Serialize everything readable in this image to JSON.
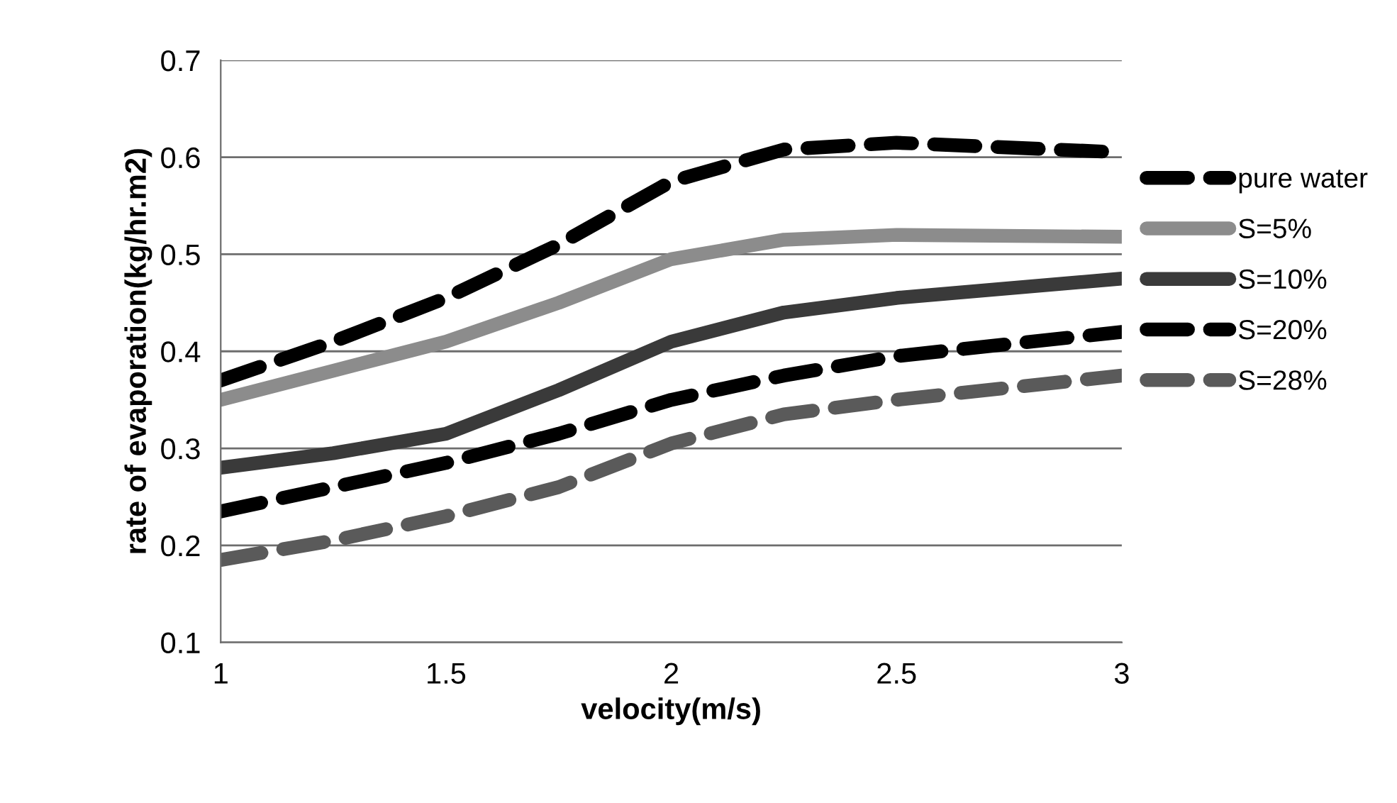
{
  "chart_data": {
    "type": "line",
    "xlabel": "velocity(m/s)",
    "ylabel": "rate of evaporation(kg/hr.m2)",
    "x": [
      1,
      1.25,
      1.5,
      1.75,
      2,
      2.25,
      2.5,
      3
    ],
    "series": [
      {
        "name": "pure water",
        "color": "#000000",
        "line_style": "dashed",
        "values": [
          0.37,
          0.41,
          0.455,
          0.51,
          0.575,
          0.608,
          0.615,
          0.605
        ]
      },
      {
        "name": "S=5%",
        "color": "#8c8c8c",
        "line_style": "solid",
        "values": [
          0.35,
          0.38,
          0.41,
          0.45,
          0.495,
          0.515,
          0.52,
          0.518
        ]
      },
      {
        "name": "S=10%",
        "color": "#3a3a3a",
        "line_style": "solid",
        "values": [
          0.28,
          0.295,
          0.315,
          0.36,
          0.41,
          0.44,
          0.455,
          0.475
        ]
      },
      {
        "name": "S=20%",
        "color": "#000000",
        "line_style": "dashed",
        "values": [
          0.235,
          0.26,
          0.285,
          0.315,
          0.35,
          0.375,
          0.395,
          0.42
        ]
      },
      {
        "name": "S=28%",
        "color": "#5a5a5a",
        "line_style": "dashed",
        "values": [
          0.185,
          0.205,
          0.23,
          0.26,
          0.305,
          0.335,
          0.35,
          0.375
        ]
      }
    ],
    "xlim": [
      1,
      3
    ],
    "xticks": [
      1,
      1.5,
      2,
      2.5,
      3
    ],
    "ylim": [
      0.1,
      0.7
    ],
    "yticks": [
      0.1,
      0.2,
      0.3,
      0.4,
      0.5,
      0.6,
      0.7
    ],
    "grid": "y",
    "legend": "right",
    "marker": "none"
  }
}
